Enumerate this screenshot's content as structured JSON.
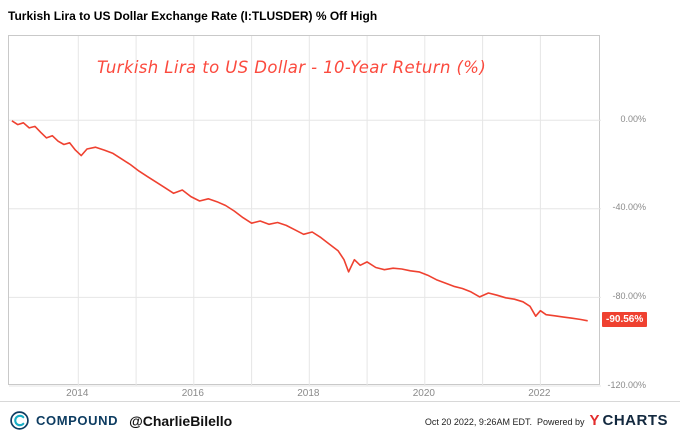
{
  "header": {
    "title": "Turkish Lira to US Dollar Exchange Rate (I:TLUSDER) % Off High"
  },
  "annotation": {
    "text": "Turkish Lira to US Dollar  - 10-Year Return (%)",
    "color": "#fb4a3e"
  },
  "chart_data": {
    "type": "line",
    "title": "Turkish Lira to US Dollar Exchange Rate (I:TLUSDER) % Off High",
    "xlabel": "",
    "ylabel": "% Off High",
    "grid": true,
    "legend_position": "none",
    "xlim": [
      2012.8,
      2023.05
    ],
    "ylim": [
      -120,
      38
    ],
    "x_gridlines": [
      2014,
      2015,
      2016,
      2017,
      2018,
      2019,
      2020,
      2021,
      2022
    ],
    "x_ticks": [
      {
        "year": 2014,
        "label": "2014"
      },
      {
        "year": 2016,
        "label": "2016"
      },
      {
        "year": 2018,
        "label": "2018"
      },
      {
        "year": 2020,
        "label": "2020"
      },
      {
        "year": 2022,
        "label": "2022"
      }
    ],
    "y_ticks": [
      {
        "value": 0,
        "label": "0.00%"
      },
      {
        "value": -40,
        "label": "-40.00%"
      },
      {
        "value": -80,
        "label": "-80.00%"
      },
      {
        "value": -120,
        "label": "-120.00%"
      }
    ],
    "last_value": -90.56,
    "last_value_label": "-90.56%",
    "series": [
      {
        "name": "I:TLUSDER % Off High",
        "color": "#ef4130",
        "points": [
          [
            2012.85,
            -0.3
          ],
          [
            2012.95,
            -2.0
          ],
          [
            2013.05,
            -1.2
          ],
          [
            2013.15,
            -3.5
          ],
          [
            2013.25,
            -2.8
          ],
          [
            2013.35,
            -5.5
          ],
          [
            2013.45,
            -8.0
          ],
          [
            2013.55,
            -7.0
          ],
          [
            2013.65,
            -9.5
          ],
          [
            2013.75,
            -11.0
          ],
          [
            2013.85,
            -10.2
          ],
          [
            2013.95,
            -13.5
          ],
          [
            2014.05,
            -16.0
          ],
          [
            2014.15,
            -13.0
          ],
          [
            2014.3,
            -12.2
          ],
          [
            2014.45,
            -13.5
          ],
          [
            2014.6,
            -15.0
          ],
          [
            2014.75,
            -17.5
          ],
          [
            2014.9,
            -20.0
          ],
          [
            2015.05,
            -23.0
          ],
          [
            2015.2,
            -25.5
          ],
          [
            2015.35,
            -28.0
          ],
          [
            2015.5,
            -30.5
          ],
          [
            2015.65,
            -33.0
          ],
          [
            2015.8,
            -31.5
          ],
          [
            2015.95,
            -34.5
          ],
          [
            2016.1,
            -36.5
          ],
          [
            2016.25,
            -35.5
          ],
          [
            2016.4,
            -36.8
          ],
          [
            2016.55,
            -38.5
          ],
          [
            2016.7,
            -41.0
          ],
          [
            2016.85,
            -44.0
          ],
          [
            2017.0,
            -46.5
          ],
          [
            2017.15,
            -45.5
          ],
          [
            2017.3,
            -47.0
          ],
          [
            2017.45,
            -46.2
          ],
          [
            2017.6,
            -47.5
          ],
          [
            2017.75,
            -49.5
          ],
          [
            2017.9,
            -51.5
          ],
          [
            2018.05,
            -50.5
          ],
          [
            2018.2,
            -53.0
          ],
          [
            2018.35,
            -56.0
          ],
          [
            2018.5,
            -59.0
          ],
          [
            2018.6,
            -63.0
          ],
          [
            2018.68,
            -68.5
          ],
          [
            2018.78,
            -63.0
          ],
          [
            2018.88,
            -65.5
          ],
          [
            2019.0,
            -64.0
          ],
          [
            2019.15,
            -66.5
          ],
          [
            2019.3,
            -67.5
          ],
          [
            2019.45,
            -66.8
          ],
          [
            2019.6,
            -67.2
          ],
          [
            2019.75,
            -68.0
          ],
          [
            2019.9,
            -68.5
          ],
          [
            2020.05,
            -70.0
          ],
          [
            2020.2,
            -72.0
          ],
          [
            2020.35,
            -73.5
          ],
          [
            2020.5,
            -75.0
          ],
          [
            2020.65,
            -76.0
          ],
          [
            2020.8,
            -77.5
          ],
          [
            2020.95,
            -79.8
          ],
          [
            2021.1,
            -78.0
          ],
          [
            2021.25,
            -79.0
          ],
          [
            2021.4,
            -80.2
          ],
          [
            2021.55,
            -80.8
          ],
          [
            2021.7,
            -82.0
          ],
          [
            2021.82,
            -84.0
          ],
          [
            2021.92,
            -88.5
          ],
          [
            2022.0,
            -86.0
          ],
          [
            2022.1,
            -87.8
          ],
          [
            2022.25,
            -88.3
          ],
          [
            2022.4,
            -88.9
          ],
          [
            2022.55,
            -89.4
          ],
          [
            2022.7,
            -90.0
          ],
          [
            2022.82,
            -90.56
          ]
        ]
      }
    ]
  },
  "footer": {
    "brand": "COMPOUND",
    "handle": "@CharlieBilello",
    "timestamp": "Oct 20 2022, 9:26AM EDT.",
    "powered_by": "Powered by",
    "ycharts_y": "Y",
    "ycharts_rest": "CHARTS"
  }
}
